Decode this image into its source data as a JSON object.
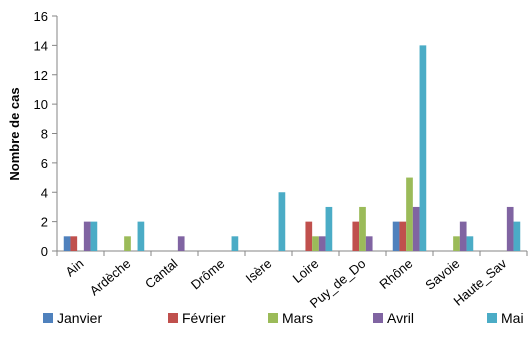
{
  "chart_data": {
    "type": "bar",
    "title": "",
    "xlabel": "",
    "ylabel": "Nombre de cas",
    "ylim": [
      0,
      16
    ],
    "yticks": [
      0,
      2,
      4,
      6,
      8,
      10,
      12,
      14,
      16
    ],
    "grid": false,
    "legend_position": "bottom",
    "categories": [
      "Ain",
      "Ardèche",
      "Cantal",
      "Drôme",
      "Isère",
      "Loire",
      "Puy_de_Do",
      "Rhône",
      "Savoie",
      "Haute_Sav"
    ],
    "series": [
      {
        "name": "Janvier",
        "color": "#4F81BD",
        "values": [
          1,
          0,
          0,
          0,
          0,
          0,
          0,
          2,
          0,
          0
        ]
      },
      {
        "name": "Février",
        "color": "#C0504D",
        "values": [
          1,
          0,
          0,
          0,
          0,
          2,
          2,
          2,
          0,
          0
        ]
      },
      {
        "name": "Mars",
        "color": "#9BBB59",
        "values": [
          0,
          1,
          0,
          0,
          0,
          1,
          3,
          5,
          1,
          0
        ]
      },
      {
        "name": "Avril",
        "color": "#8064A2",
        "values": [
          2,
          0,
          1,
          0,
          0,
          1,
          1,
          3,
          2,
          3
        ]
      },
      {
        "name": "Mai",
        "color": "#4BACC6",
        "values": [
          2,
          2,
          0,
          1,
          4,
          3,
          0,
          14,
          1,
          2
        ]
      }
    ]
  }
}
